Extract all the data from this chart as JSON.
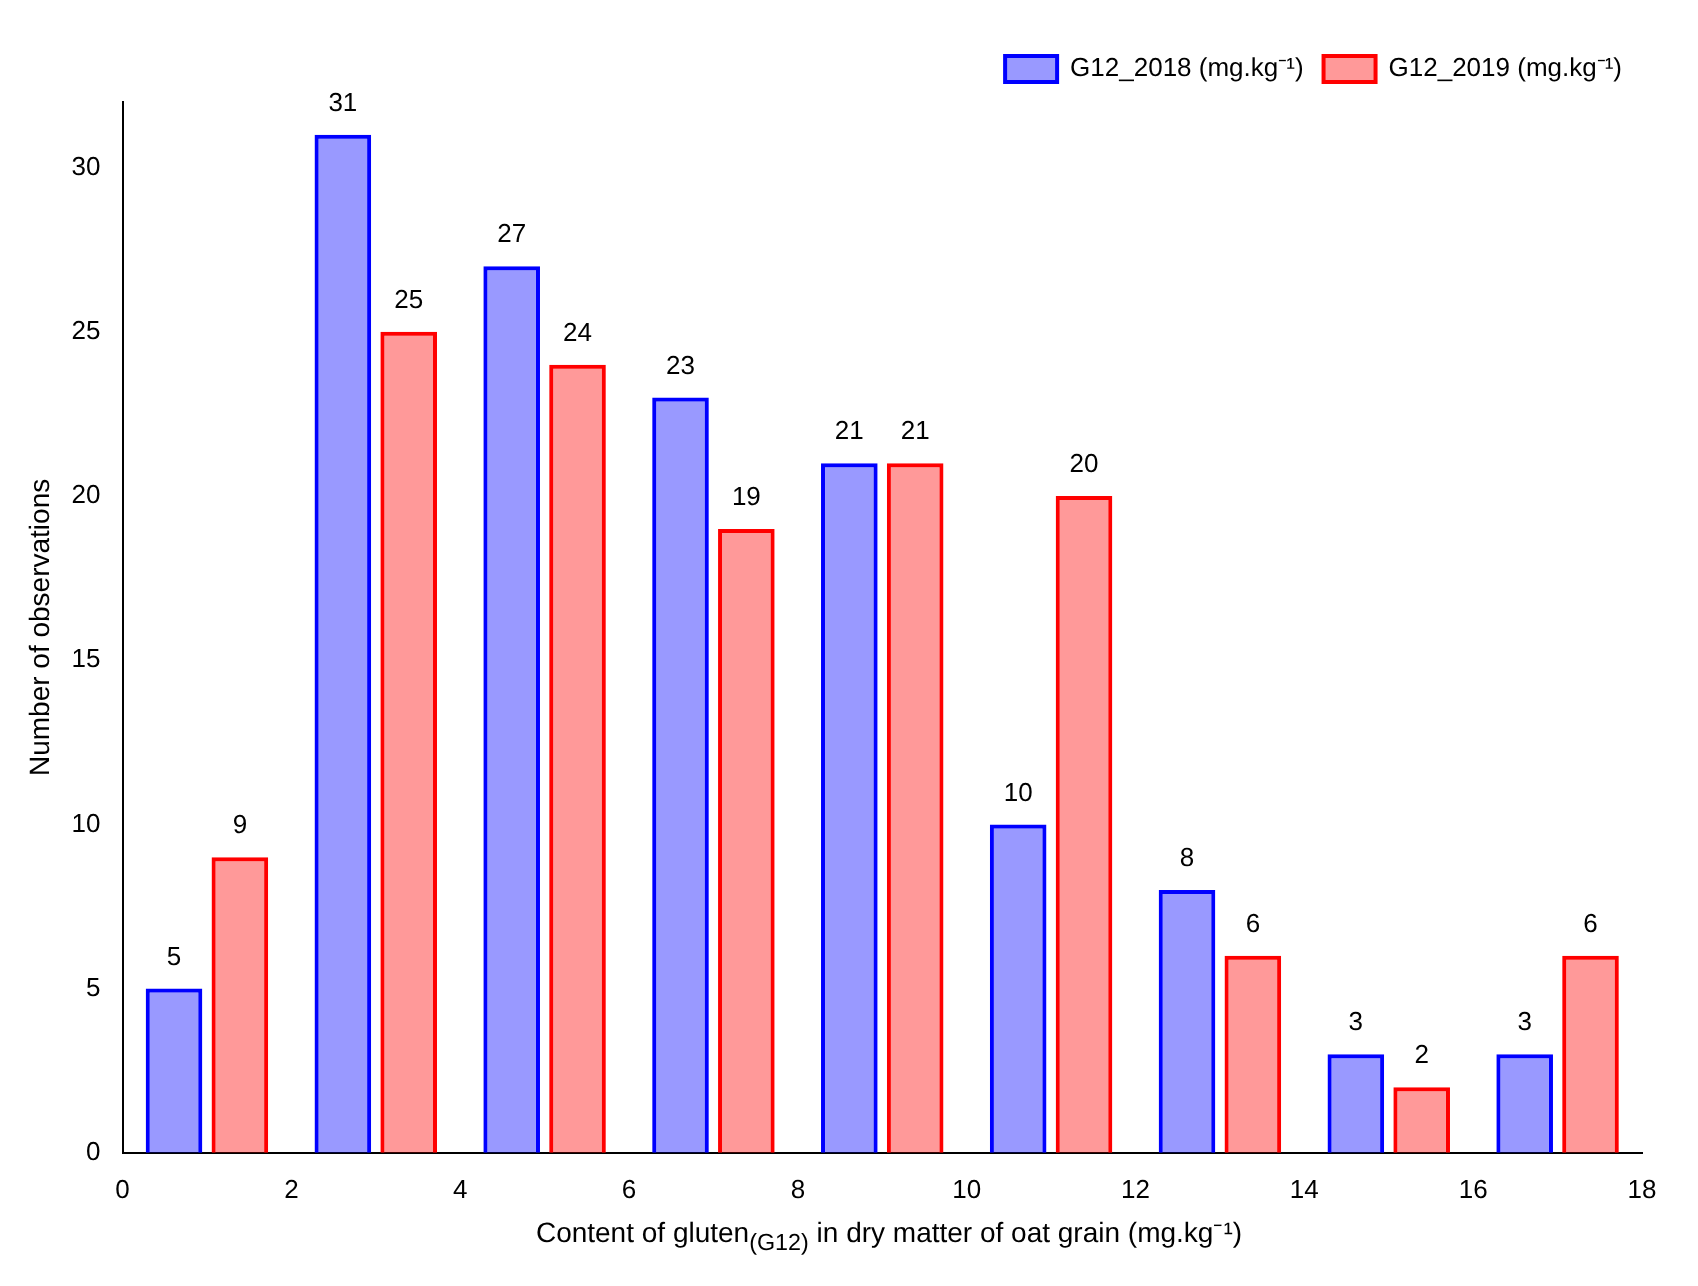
{
  "chart_data": {
    "type": "bar",
    "xlabel": "Content of gluten$_{(G12)}$ in dry matter of oat grain (mg.kg⁻¹)",
    "ylabel": "Number of observations",
    "x": [
      1,
      3,
      5,
      7,
      9,
      11,
      13,
      15,
      17
    ],
    "series": [
      {
        "name": "G12_2018 (mg.kg⁻¹)",
        "color": "#0000ff",
        "values": [
          5,
          31,
          27,
          23,
          21,
          10,
          8,
          3,
          3
        ]
      },
      {
        "name": "G12_2019 (mg.kg⁻¹)",
        "color": "#ff0000",
        "values": [
          9,
          25,
          24,
          19,
          21,
          20,
          6,
          2,
          6
        ]
      }
    ],
    "xlim": [
      0,
      18
    ],
    "xticks": [
      0,
      2,
      4,
      6,
      8,
      10,
      12,
      14,
      16,
      18
    ],
    "ylim": [
      0,
      32
    ],
    "yticks": [
      0,
      5,
      10,
      15,
      20,
      25,
      30
    ],
    "grid": false,
    "legend": "top right",
    "data_labels": true
  }
}
